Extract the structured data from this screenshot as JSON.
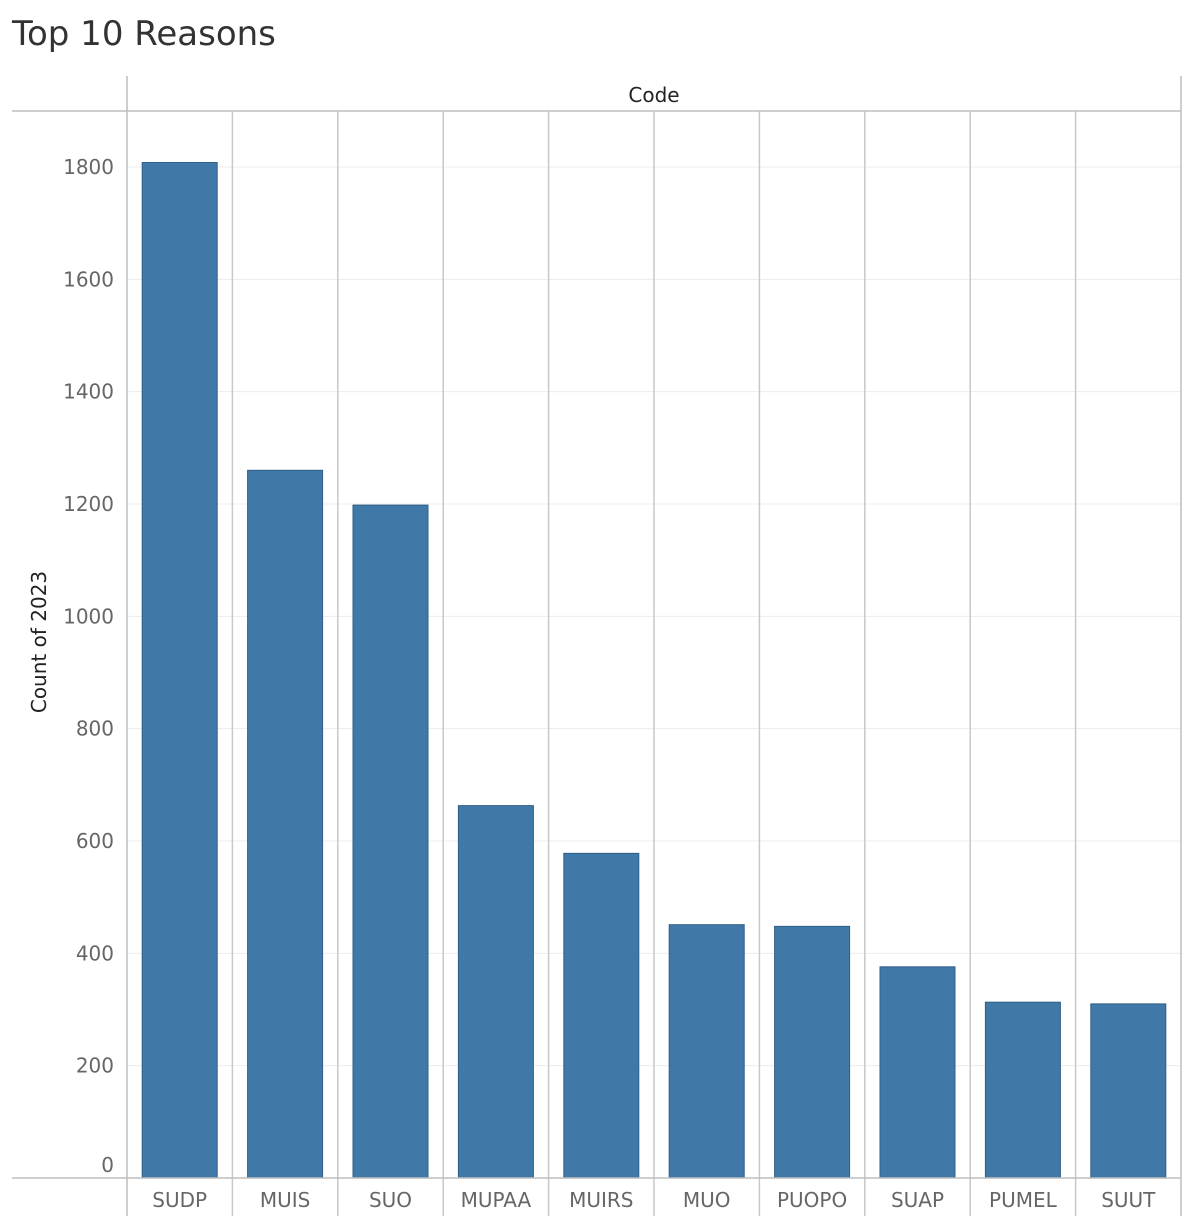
{
  "chart_data": {
    "type": "bar",
    "title": "Top 10 Reasons",
    "header_label": "Code",
    "xlabel": "",
    "ylabel": "Count of 2023",
    "categories": [
      "SUDP",
      "MUIS",
      "SUO",
      "MUPAA",
      "MUIRS",
      "MUO",
      "PUOPO",
      "SUAP",
      "PUMEL",
      "SUUT"
    ],
    "values": [
      1808,
      1260,
      1198,
      663,
      578,
      451,
      448,
      376,
      313,
      310
    ],
    "ylim": [
      0,
      1900
    ],
    "yticks": [
      0,
      200,
      400,
      600,
      800,
      1000,
      1200,
      1400,
      1600,
      1800
    ],
    "grid": true,
    "bar_color": "#4079a8",
    "bar_edge_color": "#2f5f88"
  }
}
